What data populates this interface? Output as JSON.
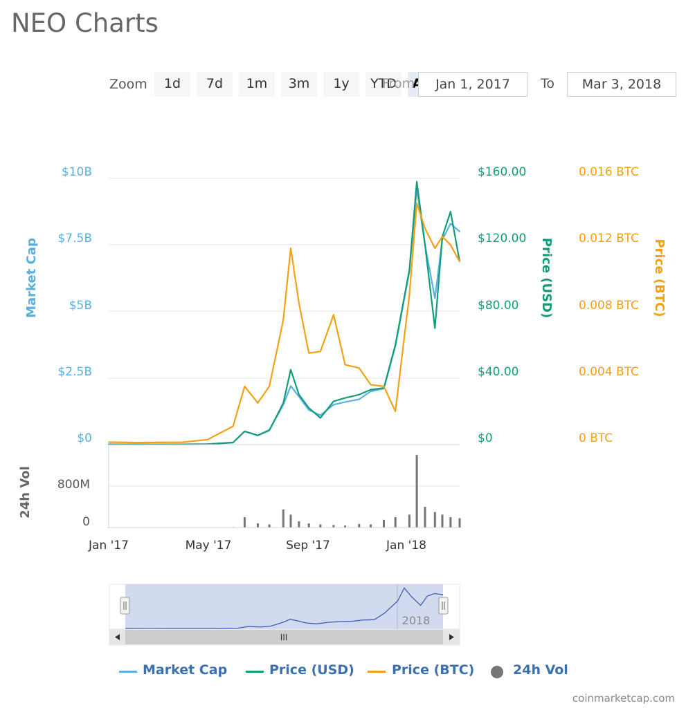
{
  "title": "NEO Charts",
  "zoom": {
    "label": "Zoom",
    "buttons": [
      "1d",
      "7d",
      "1m",
      "3m",
      "1y",
      "YTD",
      "ALL"
    ],
    "active": "ALL"
  },
  "range": {
    "from_label": "From",
    "from_value": "Jan 1, 2017",
    "to_label": "To",
    "to_value": "Mar 3, 2018"
  },
  "colors": {
    "market_cap": "#5ab0e0",
    "price_usd": "#119d78",
    "price_btc": "#f5a012",
    "volume": "#757575",
    "navigator_fill": "#c9d4ec",
    "navigator_line": "#3a5fb0"
  },
  "chart_data": {
    "type": "line",
    "title": "NEO Charts",
    "x_ticks": [
      "Jan '17",
      "May '17",
      "Sep '17",
      "Jan '18"
    ],
    "y_axes": {
      "market_cap": {
        "label": "Market Cap",
        "ticks": [
          "$10B",
          "$7.5B",
          "$5B",
          "$2.5B",
          "$0"
        ],
        "range": [
          0,
          10000000000
        ]
      },
      "price_usd": {
        "label": "Price (USD)",
        "ticks": [
          "$160.00",
          "$120.00",
          "$80.00",
          "$40.00",
          "$0"
        ],
        "range": [
          0,
          160
        ]
      },
      "price_btc": {
        "label": "Price (BTC)",
        "ticks": [
          "0.016 BTC",
          "0.012 BTC",
          "0.008 BTC",
          "0.004 BTC",
          "0 BTC"
        ],
        "range": [
          0,
          0.016
        ]
      },
      "volume": {
        "label": "24h Vol",
        "ticks": [
          "800M",
          "0"
        ],
        "range": [
          0,
          1600000000
        ]
      }
    },
    "dates": [
      "2017-01-01",
      "2017-02-01",
      "2017-03-01",
      "2017-04-01",
      "2017-05-01",
      "2017-06-01",
      "2017-06-15",
      "2017-07-01",
      "2017-07-15",
      "2017-08-01",
      "2017-08-10",
      "2017-08-20",
      "2017-09-01",
      "2017-09-15",
      "2017-10-01",
      "2017-10-15",
      "2017-11-01",
      "2017-11-15",
      "2017-12-01",
      "2017-12-15",
      "2018-01-01",
      "2018-01-10",
      "2018-01-20",
      "2018-02-01",
      "2018-02-10",
      "2018-02-20",
      "2018-03-03"
    ],
    "series": [
      {
        "name": "Market Cap",
        "axis": "market_cap",
        "values": [
          10000000,
          8000000,
          9000000,
          10000000,
          15000000,
          80000000,
          500000000,
          350000000,
          550000000,
          1500000000,
          2200000000,
          1800000000,
          1300000000,
          1100000000,
          1500000000,
          1600000000,
          1700000000,
          2000000000,
          2100000000,
          3700000000,
          6500000000,
          9600000000,
          7500000000,
          5500000000,
          7700000000,
          8300000000,
          8000000000
        ]
      },
      {
        "name": "Price (USD)",
        "axis": "price_usd",
        "values": [
          0.15,
          0.13,
          0.14,
          0.16,
          0.25,
          1.2,
          8.0,
          5.5,
          8.5,
          25,
          45,
          30,
          22,
          16,
          26,
          28,
          30,
          33,
          34,
          60,
          105,
          158,
          120,
          70,
          125,
          140,
          110
        ]
      },
      {
        "name": "Price (BTC)",
        "axis": "price_btc",
        "values": [
          0.00015,
          0.00012,
          0.00013,
          0.00014,
          0.0003,
          0.0011,
          0.0035,
          0.0025,
          0.0035,
          0.0075,
          0.0118,
          0.0085,
          0.0055,
          0.0056,
          0.0078,
          0.0048,
          0.0046,
          0.0036,
          0.0035,
          0.002,
          0.009,
          0.0145,
          0.013,
          0.0118,
          0.0125,
          0.012,
          0.011
        ]
      },
      {
        "name": "24h Vol",
        "axis": "volume",
        "values": [
          1000000,
          1000000,
          1000000,
          1000000,
          2000000,
          10000000,
          200000000,
          80000000,
          60000000,
          350000000,
          250000000,
          120000000,
          80000000,
          60000000,
          50000000,
          40000000,
          70000000,
          60000000,
          150000000,
          200000000,
          250000000,
          1400000000,
          400000000,
          300000000,
          250000000,
          200000000,
          180000000
        ]
      }
    ],
    "navigator": {
      "year_label": "2018"
    },
    "legend_position": "bottom",
    "grid": true
  },
  "legend": {
    "items": [
      {
        "label": "Market Cap",
        "icon": "line"
      },
      {
        "label": "Price (USD)",
        "icon": "line"
      },
      {
        "label": "Price (BTC)",
        "icon": "line"
      },
      {
        "label": "24h Vol",
        "icon": "dot"
      }
    ]
  },
  "credit": "coinmarketcap.com",
  "scrollbar": {
    "grip": "III"
  }
}
